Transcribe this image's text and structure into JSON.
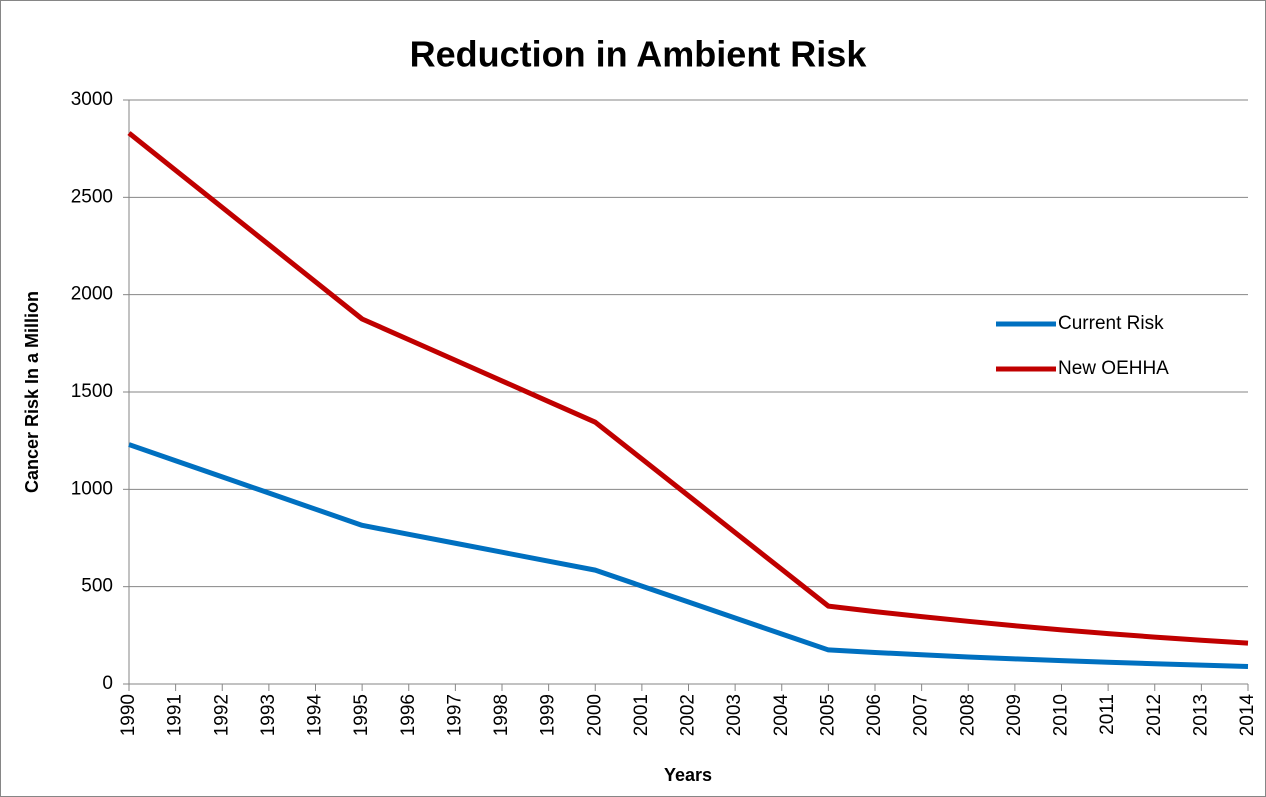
{
  "chart_data": {
    "type": "line",
    "title": "Reduction in Ambient Risk",
    "x_label": "Years",
    "y_label": "Cancer Risk In a Million",
    "categories": [
      "1990",
      "1991",
      "1992",
      "1993",
      "1994",
      "1995",
      "1996",
      "1997",
      "1998",
      "1999",
      "2000",
      "2001",
      "2002",
      "2003",
      "2004",
      "2005",
      "2006",
      "2007",
      "2008",
      "2009",
      "2010",
      "2011",
      "2012",
      "2013",
      "2014"
    ],
    "series": [
      {
        "name": "Current Risk",
        "color": "#0070c0",
        "values": [
          1230,
          1147,
          1064,
          981,
          898,
          815,
          769,
          723,
          677,
          631,
          585,
          503,
          421,
          339,
          257,
          175,
          162,
          150,
          139,
          129,
          120,
          112,
          104,
          97,
          90
        ]
      },
      {
        "name": "New OEHHA",
        "color": "#c00000",
        "values": [
          2830,
          2639,
          2448,
          2257,
          2066,
          1875,
          1769,
          1663,
          1557,
          1451,
          1345,
          1156,
          967,
          778,
          589,
          400,
          372,
          346,
          322,
          299,
          278,
          259,
          241,
          225,
          210
        ]
      }
    ],
    "ylim": [
      0,
      3000
    ],
    "yticks": [
      0,
      500,
      1000,
      1500,
      2000,
      2500,
      3000
    ],
    "grid": true,
    "legend": "right"
  }
}
